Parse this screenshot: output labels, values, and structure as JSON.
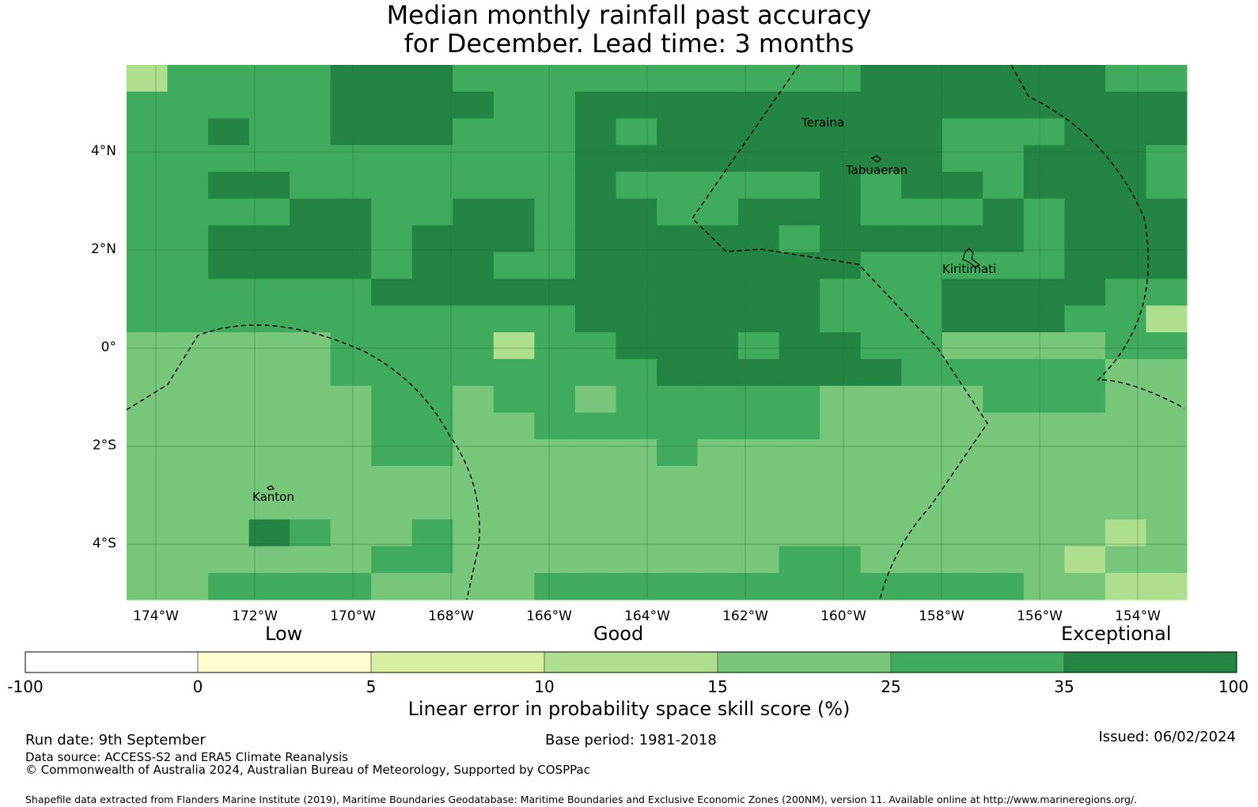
{
  "title": {
    "line1": "Median monthly rainfall past accuracy",
    "line2": "for December. Lead time: 3 months"
  },
  "map": {
    "lon_ticks": [
      "174°W",
      "172°W",
      "170°W",
      "168°W",
      "166°W",
      "164°W",
      "162°W",
      "160°W",
      "158°W",
      "156°W",
      "154°W"
    ],
    "lat_ticks": [
      "4°N",
      "2°N",
      "0°",
      "2°S",
      "4°S"
    ],
    "places": [
      "Teraina",
      "Tabuaeran",
      "Kiritimati",
      "Kanton"
    ],
    "grid_on": true
  },
  "colorbar": {
    "category_labels": [
      "Low",
      "Good",
      "Exceptional"
    ],
    "ticks": [
      "-100",
      "0",
      "5",
      "10",
      "15",
      "25",
      "35",
      "100"
    ],
    "colors": [
      "#ffffff",
      "#fefecf",
      "#d8efa3",
      "#addf8e",
      "#78c679",
      "#41ab5d",
      "#238443"
    ],
    "xlabel": "Linear error in probability space skill score (%)"
  },
  "footer": {
    "run_date": "Run date: 9th September",
    "base_period": "Base period: 1981-2018",
    "issued": "Issued: 06/02/2024",
    "data_source": "Data source: ACCESS-S2 and ERA5 Climate Reanalysis",
    "copyright": "© Commonwealth of Australia 2024, Australian Bureau of Meteorology, Supported by COSPPac",
    "shapefile": "Shapefile data extracted from Flanders Marine Institute (2019), Maritime Boundaries Geodatabase: Maritime Boundaries and Exclusive Economic Zones (200NM), version 11. Available online at http://www.marineregions.org/."
  }
}
